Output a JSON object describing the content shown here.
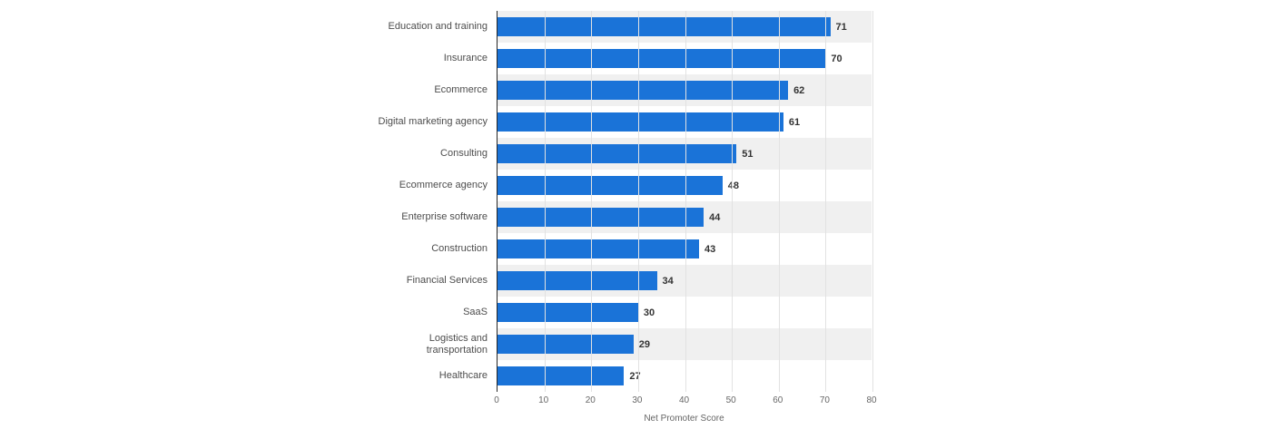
{
  "chart_data": {
    "type": "bar",
    "orientation": "horizontal",
    "title": "",
    "categories": [
      "Education and training",
      "Insurance",
      "Ecommerce",
      "Digital marketing agency",
      "Consulting",
      "Ecommerce agency",
      "Enterprise software",
      "Construction",
      "Financial Services",
      "SaaS",
      "Logistics and transportation",
      "Healthcare"
    ],
    "values": [
      71,
      70,
      62,
      61,
      51,
      48,
      44,
      43,
      34,
      30,
      29,
      27
    ],
    "xlabel": "Net Promoter Score",
    "ylabel": "",
    "xlim": [
      0,
      80
    ],
    "xticks": [
      0,
      10,
      20,
      30,
      40,
      50,
      60,
      70,
      80
    ],
    "grid": true,
    "legend": false,
    "value_labels": true,
    "bar_color": "#1a73d8",
    "band_color": "#f0f0f0",
    "gridline_color": "#e2e2e2"
  }
}
